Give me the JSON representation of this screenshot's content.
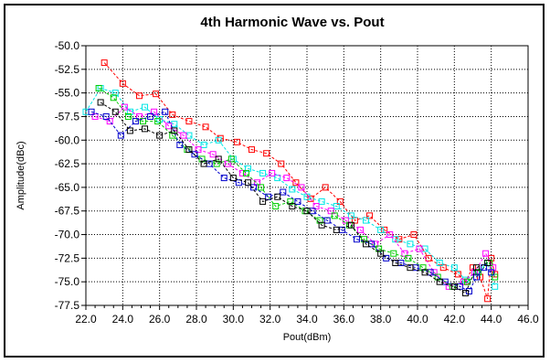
{
  "chart_data": {
    "type": "line",
    "title": "4th Harmonic Wave vs. Pout",
    "xlabel": "Pout(dBm)",
    "ylabel": "Amplitude(dBc)",
    "xlim": [
      22.0,
      46.0
    ],
    "ylim": [
      -77.5,
      -50.0
    ],
    "x_ticks": [
      "22.0",
      "24.0",
      "26.0",
      "28.0",
      "30.0",
      "32.0",
      "34.0",
      "36.0",
      "38.0",
      "40.0",
      "42.0",
      "44.0",
      "46.0"
    ],
    "y_ticks": [
      "-50.0",
      "-52.5",
      "-55.0",
      "-57.5",
      "-60.0",
      "-62.5",
      "-65.0",
      "-67.5",
      "-70.0",
      "-72.5",
      "-75.0",
      "-77.5"
    ],
    "grid": true,
    "legend": "none",
    "marker": "square",
    "series": [
      {
        "color": "#ff0000",
        "x": [
          23.0,
          24.0,
          24.9,
          25.8,
          26.7,
          27.6,
          28.5,
          29.3,
          30.2,
          31.0,
          31.8,
          32.6,
          33.4,
          34.2,
          35.0,
          35.8,
          36.6,
          37.4,
          38.2,
          39.0,
          39.8,
          40.6,
          41.4,
          42.2,
          42.6,
          43.0,
          43.4,
          43.8,
          44.0,
          44.2
        ],
        "y": [
          -51.8,
          -54.0,
          -55.3,
          -55.1,
          -57.3,
          -58.0,
          -58.6,
          -59.8,
          -60.2,
          -61.0,
          -61.4,
          -62.5,
          -64.5,
          -66.2,
          -65.0,
          -66.5,
          -68.5,
          -68.0,
          -69.5,
          -70.5,
          -70.0,
          -72.5,
          -73.5,
          -74.2,
          -75.0,
          -73.5,
          -74.5,
          -76.8,
          -72.5,
          -74.2
        ]
      },
      {
        "color": "#00e5e5",
        "x": [
          22.0,
          22.8,
          23.6,
          24.4,
          25.2,
          26.0,
          26.8,
          27.6,
          28.4,
          29.2,
          30.0,
          30.8,
          31.6,
          32.4,
          33.2,
          34.0,
          34.8,
          35.6,
          36.4,
          37.2,
          38.0,
          38.8,
          39.6,
          40.4,
          41.2,
          42.0,
          42.6,
          43.2,
          43.8,
          44.2
        ],
        "y": [
          -57.0,
          -54.5,
          -55.0,
          -57.0,
          -56.5,
          -57.8,
          -58.3,
          -59.5,
          -60.5,
          -60.0,
          -62.0,
          -63.0,
          -63.5,
          -64.0,
          -65.2,
          -66.0,
          -66.5,
          -67.0,
          -68.0,
          -68.5,
          -69.5,
          -70.5,
          -71.0,
          -71.5,
          -73.0,
          -73.5,
          -74.8,
          -74.0,
          -73.0,
          -75.5
        ]
      },
      {
        "color": "#ff00ff",
        "x": [
          22.5,
          23.3,
          24.1,
          24.9,
          25.7,
          26.5,
          27.3,
          28.1,
          28.9,
          29.7,
          30.5,
          31.3,
          32.1,
          32.9,
          33.7,
          34.5,
          35.3,
          36.1,
          36.9,
          37.7,
          38.5,
          39.3,
          40.1,
          40.9,
          41.7,
          42.5,
          43.1,
          43.7,
          44.1
        ],
        "y": [
          -57.5,
          -58.0,
          -56.5,
          -57.5,
          -57.0,
          -58.5,
          -59.5,
          -61.0,
          -61.5,
          -62.5,
          -63.5,
          -64.5,
          -63.5,
          -64.0,
          -65.0,
          -67.0,
          -67.5,
          -68.5,
          -69.5,
          -71.0,
          -70.0,
          -72.0,
          -71.5,
          -74.0,
          -75.5,
          -75.0,
          -74.0,
          -72.0,
          -73.5
        ]
      },
      {
        "color": "#00cc00",
        "x": [
          22.7,
          23.5,
          24.3,
          25.1,
          25.9,
          26.7,
          27.5,
          28.3,
          29.1,
          29.9,
          30.7,
          31.5,
          32.3,
          33.1,
          33.9,
          34.7,
          35.5,
          36.3,
          37.1,
          37.9,
          38.7,
          39.5,
          40.3,
          41.1,
          41.9,
          42.7,
          43.3,
          43.9,
          44.2
        ],
        "y": [
          -54.5,
          -55.5,
          -57.5,
          -58.0,
          -58.0,
          -59.5,
          -61.0,
          -62.0,
          -62.5,
          -62.0,
          -63.5,
          -65.0,
          -67.0,
          -66.5,
          -67.5,
          -68.5,
          -68.0,
          -69.0,
          -70.5,
          -71.5,
          -72.0,
          -72.5,
          -73.5,
          -74.5,
          -75.5,
          -75.0,
          -74.0,
          -73.0,
          -74.5
        ]
      },
      {
        "color": "#0000cc",
        "x": [
          22.3,
          23.1,
          23.9,
          24.7,
          25.5,
          26.3,
          27.1,
          27.9,
          28.7,
          29.5,
          30.3,
          31.1,
          31.9,
          32.7,
          33.5,
          34.3,
          35.1,
          35.9,
          36.7,
          37.5,
          38.3,
          39.1,
          39.9,
          40.7,
          41.5,
          42.3,
          42.8,
          43.2,
          43.6,
          44.0
        ],
        "y": [
          -57.0,
          -57.5,
          -59.5,
          -58.0,
          -57.5,
          -57.0,
          -60.5,
          -61.5,
          -62.5,
          -64.0,
          -64.5,
          -65.0,
          -66.0,
          -65.5,
          -66.5,
          -67.5,
          -68.5,
          -69.5,
          -70.5,
          -71.0,
          -72.5,
          -73.0,
          -73.5,
          -74.0,
          -75.0,
          -75.5,
          -76.0,
          -74.5,
          -73.5,
          -74.0
        ]
      },
      {
        "color": "#000000",
        "x": [
          22.8,
          23.6,
          24.4,
          25.2,
          26.0,
          26.8,
          27.6,
          28.4,
          29.2,
          30.0,
          30.8,
          31.6,
          32.4,
          33.2,
          34.0,
          34.8,
          35.6,
          36.4,
          37.2,
          38.0,
          38.8,
          39.6,
          40.4,
          41.2,
          42.0,
          42.6,
          43.2,
          43.8
        ],
        "y": [
          -56.0,
          -57.0,
          -59.0,
          -58.8,
          -59.5,
          -59.0,
          -61.0,
          -62.5,
          -62.0,
          -64.0,
          -64.5,
          -66.5,
          -66.0,
          -67.0,
          -67.5,
          -69.0,
          -69.5,
          -69.0,
          -71.0,
          -72.0,
          -73.0,
          -73.5,
          -74.0,
          -75.0,
          -75.5,
          -76.2,
          -73.5,
          -73.0
        ]
      }
    ]
  }
}
